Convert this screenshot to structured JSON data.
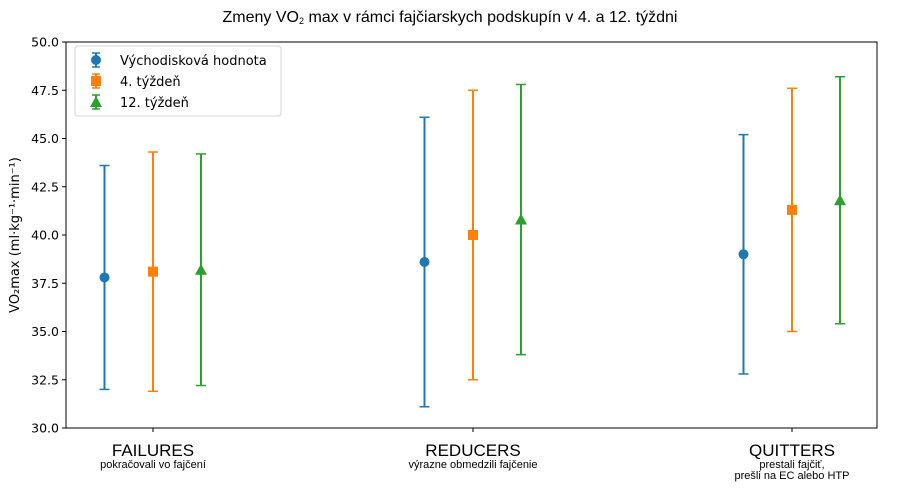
{
  "chart_data": {
    "type": "errorbar",
    "title": "Zmeny VO₂ max v rámci fajčiarskych podskupín v 4. a 12. týždni",
    "title_parts": {
      "pre": "Zmeny VO",
      "sub": "2",
      "post": " max v rámci fajčiarskych podskupín v 4. a 12. týždni"
    },
    "xlabel": "",
    "ylabel": "VO₂max (ml·kg⁻¹·min⁻¹)",
    "ylim": [
      30.0,
      50.0
    ],
    "yticks": [
      "30.0",
      "32.5",
      "35.0",
      "37.5",
      "40.0",
      "42.5",
      "45.0",
      "47.5",
      "50.0"
    ],
    "categories": [
      {
        "label": "FAILURES",
        "sublabel": [
          "pokračovali vo fajčení"
        ]
      },
      {
        "label": "REDUCERS",
        "sublabel": [
          "výrazne obmedzili fajčenie"
        ]
      },
      {
        "label": "QUITTERS",
        "sublabel": [
          "prestali fajčiť,",
          "prešli na EC alebo HTP"
        ]
      }
    ],
    "series": [
      {
        "name": "Východisková hodnota",
        "color": "#1f77b4",
        "marker": "circle",
        "values": [
          37.8,
          38.6,
          39.0
        ],
        "lower": [
          32.0,
          31.1,
          32.8
        ],
        "upper": [
          43.6,
          46.1,
          45.2
        ]
      },
      {
        "name": "4. týždeň",
        "color": "#ff7f0e",
        "marker": "square",
        "values": [
          38.1,
          40.0,
          41.3
        ],
        "lower": [
          31.9,
          32.5,
          35.0
        ],
        "upper": [
          44.3,
          47.5,
          47.6
        ]
      },
      {
        "name": "12. týždeň",
        "color": "#2ca02c",
        "marker": "triangle",
        "values": [
          38.2,
          40.8,
          41.8
        ],
        "lower": [
          32.2,
          33.8,
          35.4
        ],
        "upper": [
          44.2,
          47.8,
          48.2
        ]
      }
    ],
    "legend_position": "upper left",
    "grid": false
  }
}
